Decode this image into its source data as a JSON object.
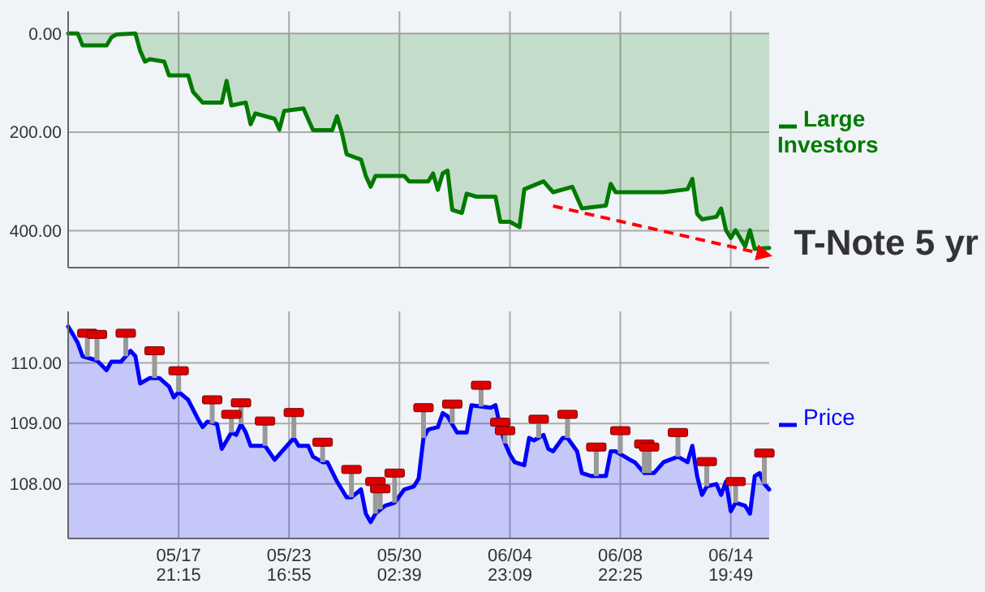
{
  "chart_data": [
    {
      "type": "area",
      "annotations": [
        "T-Note 5 yr"
      ],
      "tick_labels": "y",
      "ylim": [
        475,
        -45
      ],
      "yticks": [
        {
          "value": 0,
          "label": "0.00"
        },
        {
          "value": 200,
          "label": "200.00"
        },
        {
          "value": 400,
          "label": "400.00"
        }
      ],
      "grid": true,
      "legend": "right",
      "categories": [
        null,
        null,
        null,
        null,
        null,
        null,
        null,
        null,
        null,
        null,
        null,
        null,
        null,
        null,
        null,
        null,
        null,
        null,
        null,
        null,
        null,
        null,
        null,
        null,
        null,
        null,
        null,
        null,
        null,
        null,
        null,
        null,
        null,
        null,
        null,
        null,
        null,
        null,
        null,
        null,
        null,
        null,
        null,
        null,
        null,
        null,
        null,
        null,
        null,
        null,
        null,
        null,
        null,
        null,
        null,
        null,
        null,
        null,
        null,
        null,
        null,
        null,
        null,
        null,
        null,
        null,
        null,
        null,
        null,
        null,
        null,
        null,
        null,
        null,
        null,
        null,
        null,
        null,
        null,
        null,
        null,
        null,
        null,
        null,
        null,
        null,
        null,
        null,
        null,
        null,
        null,
        null,
        null,
        null,
        null,
        null,
        null,
        null,
        null,
        null,
        null,
        null,
        null,
        null,
        null,
        null,
        null,
        null,
        null,
        null,
        null,
        null,
        null,
        null,
        null,
        null,
        null,
        null,
        null,
        null,
        null,
        null,
        null,
        null,
        null,
        null,
        null,
        null,
        null,
        null,
        null,
        null,
        null,
        null,
        null,
        null,
        null,
        null,
        null,
        null,
        null,
        null,
        null,
        null,
        null,
        null,
        null
      ],
      "series": [
        {
          "name": "Large Investors",
          "color": "#007a00",
          "values": [
            0,
            null,
            0,
            24,
            null,
            null,
            null,
            null,
            24,
            8,
            2,
            null,
            null,
            null,
            0,
            35,
            57,
            52,
            null,
            null,
            57,
            85,
            null,
            null,
            null,
            85,
            118,
            null,
            140,
            null,
            null,
            null,
            140,
            96,
            146,
            null,
            null,
            140,
            184,
            162,
            null,
            null,
            null,
            173,
            195,
            157,
            null,
            null,
            null,
            152,
            null,
            196,
            null,
            null,
            null,
            196,
            168,
            201,
            245,
            null,
            null,
            256,
            289,
            311,
            289,
            null,
            null,
            null,
            null,
            null,
            289,
            300,
            null,
            null,
            null,
            300,
            284,
            317,
            284,
            278,
            358,
            null,
            364,
            325,
            null,
            331,
            null,
            null,
            null,
            331,
            382,
            null,
            382,
            null,
            393,
            316,
            null,
            null,
            null,
            300,
            null,
            322,
            null,
            null,
            null,
            311,
            null,
            355,
            null,
            null,
            null,
            null,
            349,
            305,
            322,
            null,
            null,
            null,
            null,
            null,
            null,
            null,
            null,
            null,
            322,
            null,
            null,
            null,
            null,
            316,
            295,
            366,
            377,
            null,
            null,
            372,
            355,
            399,
            415,
            399,
            null,
            432,
            399,
            437,
            null,
            null,
            435
          ]
        },
        {
          "type": "line",
          "color": "#ff0000",
          "line_style": "dashed",
          "values": [
            null,
            null,
            null,
            null,
            null,
            null,
            null,
            null,
            null,
            null,
            null,
            null,
            null,
            null,
            null,
            null,
            null,
            null,
            null,
            null,
            null,
            null,
            null,
            null,
            null,
            null,
            null,
            null,
            null,
            null,
            null,
            null,
            null,
            null,
            null,
            null,
            null,
            null,
            null,
            null,
            null,
            null,
            null,
            null,
            null,
            null,
            null,
            null,
            null,
            null,
            null,
            null,
            null,
            null,
            null,
            null,
            null,
            null,
            null,
            null,
            null,
            null,
            null,
            null,
            null,
            null,
            null,
            null,
            null,
            null,
            null,
            null,
            null,
            null,
            null,
            null,
            null,
            null,
            null,
            null,
            null,
            null,
            null,
            null,
            null,
            null,
            null,
            null,
            null,
            null,
            null,
            null,
            null,
            null,
            null,
            null,
            null,
            null,
            null,
            null,
            null,
            350,
            null,
            null,
            null,
            null,
            null,
            null,
            null,
            null,
            null,
            null,
            null,
            null,
            null,
            null,
            null,
            null,
            null,
            null,
            null,
            null,
            null,
            null,
            null,
            null,
            null,
            null,
            null,
            null,
            null,
            null,
            null,
            null,
            null,
            null,
            null,
            null,
            null,
            null,
            null,
            null,
            null,
            null,
            null,
            null,
            450
          ]
        }
      ]
    },
    {
      "type": "area",
      "ylim": [
        107.1,
        110.85
      ],
      "yticks": [
        {
          "value": 108,
          "label": "108.00"
        },
        {
          "value": 109,
          "label": "109.00"
        },
        {
          "value": 110,
          "label": "110.00"
        }
      ],
      "grid": true,
      "legend": "right",
      "categories": [
        null,
        null,
        null,
        null,
        null,
        null,
        null,
        null,
        null,
        null,
        null,
        null,
        null,
        null,
        null,
        null,
        null,
        null,
        null,
        null,
        null,
        null,
        null,
        "05/17 21:15",
        null,
        null,
        null,
        null,
        null,
        null,
        null,
        null,
        null,
        null,
        null,
        null,
        null,
        null,
        null,
        null,
        null,
        null,
        null,
        null,
        null,
        null,
        "05/23 16:55",
        null,
        null,
        null,
        null,
        null,
        null,
        null,
        null,
        null,
        null,
        null,
        null,
        null,
        null,
        null,
        null,
        null,
        null,
        null,
        null,
        null,
        null,
        "05/30 02:39",
        null,
        null,
        null,
        null,
        null,
        null,
        null,
        null,
        null,
        null,
        null,
        null,
        null,
        null,
        null,
        null,
        null,
        null,
        null,
        null,
        null,
        null,
        "06/04 23:09",
        null,
        null,
        null,
        null,
        null,
        null,
        null,
        null,
        null,
        null,
        null,
        null,
        null,
        null,
        null,
        null,
        null,
        null,
        null,
        null,
        null,
        null,
        "06/08 22:25",
        null,
        null,
        null,
        null,
        null,
        null,
        null,
        null,
        null,
        null,
        null,
        null,
        null,
        null,
        null,
        null,
        null,
        null,
        null,
        null,
        null,
        null,
        "06/14 19:49",
        null,
        null,
        null,
        null,
        null,
        null,
        null,
        null
      ],
      "series": [
        {
          "name": "Price",
          "color": "#0000ff",
          "values": [
            110.6,
            110.47,
            110.33,
            110.11,
            null,
            null,
            110.04,
            null,
            109.88,
            110.02,
            null,
            110.02,
            110.11,
            110.2,
            110.11,
            109.66,
            null,
            109.75,
            null,
            109.75,
            null,
            109.61,
            109.43,
            109.52,
            null,
            109.39,
            null,
            109.08,
            108.94,
            109.03,
            null,
            108.99,
            108.58,
            null,
            108.85,
            108.81,
            108.99,
            108.85,
            108.63,
            null,
            null,
            108.63,
            null,
            108.4,
            null,
            108.58,
            null,
            108.76,
            108.63,
            null,
            108.63,
            108.45,
            null,
            108.36,
            108.36,
            null,
            108.04,
            null,
            107.78,
            107.78,
            null,
            107.91,
            107.51,
            107.37,
            107.51,
            null,
            107.64,
            null,
            107.69,
            null,
            107.91,
            null,
            107.96,
            108.09,
            108.76,
            108.9,
            null,
            108.94,
            109.17,
            109.12,
            null,
            108.85,
            null,
            108.85,
            109.3,
            null,
            null,
            null,
            109.26,
            109.3,
            108.94,
            108.67,
            108.49,
            108.36,
            null,
            108.31,
            108.76,
            108.72,
            null,
            108.81,
            108.58,
            108.54,
            null,
            108.76,
            108.76,
            null,
            108.54,
            108.18,
            null,
            108.13,
            null,
            null,
            108.13,
            108.54,
            108.54,
            null,
            null,
            108.4,
            108.36,
            null,
            108.18,
            null,
            108.18,
            null,
            108.36,
            null,
            null,
            108.45,
            null,
            108.36,
            108.63,
            108.13,
            107.82,
            107.96,
            null,
            108.0,
            107.82,
            108.04,
            107.55,
            107.69,
            null,
            107.64,
            107.51,
            108.13,
            108.18,
            108.0,
            107.91
          ]
        },
        {
          "type": "scatter",
          "color": "#dd0000",
          "marker": "square",
          "errors": [
            null,
            null,
            null,
            null,
            [
              110.1,
              110.49
            ],
            null,
            [
              110.04,
              110.47
            ],
            null,
            null,
            null,
            null,
            null,
            [
              110.11,
              110.49
            ],
            null,
            null,
            null,
            null,
            null,
            [
              109.75,
              110.2
            ],
            null,
            null,
            null,
            null,
            [
              109.52,
              109.87
            ],
            null,
            null,
            null,
            null,
            null,
            null,
            [
              109.0,
              109.39
            ],
            null,
            null,
            null,
            [
              108.85,
              109.15
            ],
            null,
            [
              108.99,
              109.34
            ],
            null,
            null,
            null,
            null,
            [
              108.63,
              109.04
            ],
            null,
            null,
            null,
            null,
            null,
            [
              108.76,
              109.18
            ],
            null,
            null,
            null,
            null,
            null,
            [
              108.36,
              108.69
            ],
            null,
            null,
            null,
            null,
            null,
            [
              107.78,
              108.24
            ],
            null,
            null,
            null,
            null,
            [
              107.51,
              108.04
            ],
            [
              107.58,
              107.92
            ],
            null,
            null,
            [
              107.69,
              108.18
            ],
            null,
            null,
            null,
            null,
            null,
            [
              108.76,
              109.26
            ],
            null,
            null,
            null,
            null,
            null,
            [
              109.0,
              109.32
            ],
            null,
            null,
            null,
            null,
            null,
            [
              109.28,
              109.63
            ],
            null,
            null,
            null,
            null,
            [
              108.67,
              108.88
            ],
            null,
            null,
            null,
            null,
            null,
            null,
            [
              108.76,
              109.07
            ],
            null,
            null,
            null,
            null,
            null,
            [
              108.76,
              109.15
            ],
            null,
            null,
            null,
            null,
            null,
            [
              108.13,
              108.61
            ],
            null,
            null,
            null,
            null,
            [
              108.5,
              108.88
            ],
            null,
            null,
            null,
            null,
            [
              108.18,
              108.66
            ],
            [
              108.18,
              108.61
            ],
            null,
            null,
            null,
            null,
            null,
            [
              108.45,
              108.85
            ],
            null,
            null,
            null,
            null,
            null,
            [
              107.96,
              108.37
            ],
            null,
            null,
            null,
            null,
            null,
            [
              107.69,
              108.04
            ],
            null,
            null,
            null,
            null,
            null,
            [
              108.0,
              108.51
            ],
            null
          ],
          "values": [
            null,
            null,
            null,
            null,
            110.49,
            null,
            110.47,
            null,
            null,
            null,
            null,
            null,
            110.49,
            null,
            null,
            null,
            null,
            null,
            110.2,
            null,
            null,
            null,
            null,
            109.87,
            null,
            null,
            null,
            null,
            null,
            null,
            109.39,
            null,
            null,
            null,
            109.15,
            null,
            109.34,
            null,
            null,
            null,
            null,
            109.04,
            null,
            null,
            null,
            null,
            null,
            109.18,
            null,
            null,
            null,
            null,
            null,
            108.69,
            null,
            null,
            null,
            null,
            null,
            108.24,
            null,
            null,
            null,
            null,
            108.04,
            107.92,
            null,
            null,
            108.18,
            null,
            null,
            null,
            null,
            null,
            109.26,
            null,
            null,
            null,
            null,
            null,
            109.32,
            null,
            null,
            null,
            null,
            null,
            109.63,
            null,
            null,
            null,
            109.02,
            108.88,
            null,
            null,
            null,
            null,
            null,
            null,
            109.07,
            null,
            null,
            null,
            null,
            null,
            109.15,
            null,
            null,
            null,
            null,
            null,
            108.61,
            null,
            null,
            null,
            null,
            108.88,
            null,
            null,
            null,
            null,
            108.66,
            108.61,
            null,
            null,
            null,
            null,
            null,
            108.85,
            null,
            null,
            null,
            null,
            null,
            108.37,
            null,
            null,
            null,
            null,
            null,
            108.04,
            null,
            null,
            null,
            null,
            null,
            108.51,
            null
          ]
        }
      ]
    }
  ]
}
